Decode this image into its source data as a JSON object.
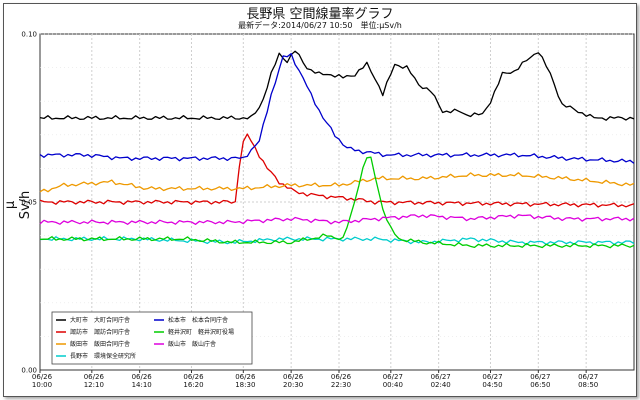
{
  "chart_data": {
    "type": "line",
    "title": "長野県 空間線量率グラフ",
    "subtitle": "最新データ:2014/06/27 10:50　単位:μSv/h",
    "ylabel": "μ Sv/h",
    "ylim": [
      0.0,
      0.1
    ],
    "yticks": [
      "0.00",
      "0.05",
      "0.10"
    ],
    "grid": true,
    "legend_position": "bottom-left",
    "xlim": [
      "06/26 10:00",
      "06/27 10:50"
    ],
    "x_tick_labels": [
      [
        "06/26",
        "10:00"
      ],
      [
        "06/26",
        "12:10"
      ],
      [
        "06/26",
        "14:10"
      ],
      [
        "06/26",
        "16:20"
      ],
      [
        "06/26",
        "18:30"
      ],
      [
        "06/26",
        "20:30"
      ],
      [
        "06/26",
        "22:30"
      ],
      [
        "06/27",
        "00:40"
      ],
      [
        "06/27",
        "02:40"
      ],
      [
        "06/27",
        "04:50"
      ],
      [
        "06/27",
        "06:50"
      ],
      [
        "06/27",
        "08:50"
      ]
    ],
    "series": [
      {
        "name": "大町市　大町合同庁舎",
        "color": "#000000",
        "points": [
          [
            "06/26 10:00",
            0.075
          ],
          [
            "06/26 16:30",
            0.075
          ],
          [
            "06/26 18:50",
            0.075
          ],
          [
            "06/26 19:15",
            0.079
          ],
          [
            "06/26 19:40",
            0.088
          ],
          [
            "06/26 20:00",
            0.094
          ],
          [
            "06/26 20:20",
            0.092
          ],
          [
            "06/26 20:40",
            0.095
          ],
          [
            "06/26 21:10",
            0.09
          ],
          [
            "06/26 21:40",
            0.088
          ],
          [
            "06/26 22:10",
            0.088
          ],
          [
            "06/26 22:40",
            0.087
          ],
          [
            "06/26 23:10",
            0.088
          ],
          [
            "06/26 23:40",
            0.091
          ],
          [
            "06/27 00:00",
            0.087
          ],
          [
            "06/27 00:20",
            0.082
          ],
          [
            "06/27 00:50",
            0.091
          ],
          [
            "06/27 01:20",
            0.09
          ],
          [
            "06/27 01:50",
            0.085
          ],
          [
            "06/27 02:20",
            0.083
          ],
          [
            "06/27 02:50",
            0.077
          ],
          [
            "06/27 03:30",
            0.077
          ],
          [
            "06/27 03:50",
            0.076
          ],
          [
            "06/27 04:30",
            0.076
          ],
          [
            "06/27 04:50",
            0.08
          ],
          [
            "06/27 05:20",
            0.088
          ],
          [
            "06/27 05:50",
            0.089
          ],
          [
            "06/27 06:20",
            0.092
          ],
          [
            "06/27 06:50",
            0.095
          ],
          [
            "06/27 07:20",
            0.088
          ],
          [
            "06/27 07:50",
            0.079
          ],
          [
            "06/27 08:30",
            0.077
          ],
          [
            "06/27 09:10",
            0.075
          ],
          [
            "06/27 10:50",
            0.075
          ]
        ]
      },
      {
        "name": "諏訪市　諏訪合同庁舎",
        "color": "#dd0000",
        "points": [
          [
            "06/26 10:00",
            0.05
          ],
          [
            "06/26 17:50",
            0.05
          ],
          [
            "06/26 18:10",
            0.05
          ],
          [
            "06/26 18:20",
            0.061
          ],
          [
            "06/26 18:35",
            0.071
          ],
          [
            "06/26 18:50",
            0.068
          ],
          [
            "06/26 19:10",
            0.064
          ],
          [
            "06/26 19:30",
            0.06
          ],
          [
            "06/26 20:00",
            0.056
          ],
          [
            "06/26 20:40",
            0.053
          ],
          [
            "06/26 21:30",
            0.052
          ],
          [
            "06/26 23:00",
            0.051
          ],
          [
            "06/27 00:00",
            0.05
          ],
          [
            "06/27 10:50",
            0.049
          ]
        ]
      },
      {
        "name": "飯田市　飯田合同庁舎",
        "color": "#ee9900",
        "points": [
          [
            "06/26 10:00",
            0.053
          ],
          [
            "06/26 11:00",
            0.055
          ],
          [
            "06/26 13:00",
            0.056
          ],
          [
            "06/26 14:30",
            0.054
          ],
          [
            "06/26 16:30",
            0.054
          ],
          [
            "06/26 18:30",
            0.054
          ],
          [
            "06/26 20:30",
            0.055
          ],
          [
            "06/26 22:30",
            0.055
          ],
          [
            "06/27 00:00",
            0.057
          ],
          [
            "06/27 02:00",
            0.057
          ],
          [
            "06/27 04:00",
            0.058
          ],
          [
            "06/27 06:00",
            0.058
          ],
          [
            "06/27 08:00",
            0.057
          ],
          [
            "06/27 10:50",
            0.055
          ]
        ]
      },
      {
        "name": "長野市　環境保全研究所",
        "color": "#00cccc",
        "points": [
          [
            "06/26 10:00",
            0.039
          ],
          [
            "06/26 14:00",
            0.039
          ],
          [
            "06/26 18:00",
            0.038
          ],
          [
            "06/26 20:00",
            0.039
          ],
          [
            "06/26 22:00",
            0.039
          ],
          [
            "06/27 00:00",
            0.039
          ],
          [
            "06/27 02:00",
            0.038
          ],
          [
            "06/27 04:00",
            0.039
          ],
          [
            "06/27 06:00",
            0.038
          ],
          [
            "06/27 08:00",
            0.038
          ],
          [
            "06/27 10:50",
            0.038
          ]
        ]
      },
      {
        "name": "松本市　松本合同庁舎",
        "color": "#0000cc",
        "points": [
          [
            "06/26 10:00",
            0.064
          ],
          [
            "06/26 12:00",
            0.064
          ],
          [
            "06/26 13:30",
            0.063
          ],
          [
            "06/26 16:30",
            0.063
          ],
          [
            "06/26 18:30",
            0.063
          ],
          [
            "06/26 19:10",
            0.068
          ],
          [
            "06/26 19:40",
            0.082
          ],
          [
            "06/26 20:10",
            0.093
          ],
          [
            "06/26 20:30",
            0.094
          ],
          [
            "06/26 20:50",
            0.089
          ],
          [
            "06/26 21:20",
            0.082
          ],
          [
            "06/26 21:50",
            0.075
          ],
          [
            "06/26 22:20",
            0.07
          ],
          [
            "06/26 22:50",
            0.066
          ],
          [
            "06/26 23:30",
            0.065
          ],
          [
            "06/27 00:30",
            0.064
          ],
          [
            "06/27 02:00",
            0.064
          ],
          [
            "06/27 04:00",
            0.064
          ],
          [
            "06/27 06:00",
            0.064
          ],
          [
            "06/27 08:00",
            0.063
          ],
          [
            "06/27 10:50",
            0.062
          ]
        ]
      },
      {
        "name": "軽井沢町　軽井沢町役場",
        "color": "#00cc00",
        "points": [
          [
            "06/26 10:00",
            0.039
          ],
          [
            "06/26 16:00",
            0.039
          ],
          [
            "06/26 18:00",
            0.038
          ],
          [
            "06/26 20:30",
            0.038
          ],
          [
            "06/26 22:00",
            0.04
          ],
          [
            "06/26 22:40",
            0.039
          ],
          [
            "06/26 23:00",
            0.046
          ],
          [
            "06/26 23:30",
            0.06
          ],
          [
            "06/26 23:45",
            0.065
          ],
          [
            "06/27 00:00",
            0.058
          ],
          [
            "06/27 00:20",
            0.048
          ],
          [
            "06/27 00:40",
            0.042
          ],
          [
            "06/27 01:00",
            0.039
          ],
          [
            "06/27 02:00",
            0.038
          ],
          [
            "06/27 04:00",
            0.037
          ],
          [
            "06/27 06:00",
            0.037
          ],
          [
            "06/27 08:00",
            0.037
          ],
          [
            "06/27 10:50",
            0.037
          ]
        ]
      },
      {
        "name": "飯山市　飯山庁舎",
        "color": "#dd00dd",
        "points": [
          [
            "06/26 10:00",
            0.044
          ],
          [
            "06/26 14:00",
            0.044
          ],
          [
            "06/26 18:00",
            0.044
          ],
          [
            "06/26 20:30",
            0.045
          ],
          [
            "06/26 22:30",
            0.044
          ],
          [
            "06/27 00:00",
            0.045
          ],
          [
            "06/27 02:00",
            0.046
          ],
          [
            "06/27 04:00",
            0.045
          ],
          [
            "06/27 06:00",
            0.046
          ],
          [
            "06/27 08:00",
            0.045
          ],
          [
            "06/27 10:50",
            0.045
          ]
        ]
      }
    ]
  }
}
